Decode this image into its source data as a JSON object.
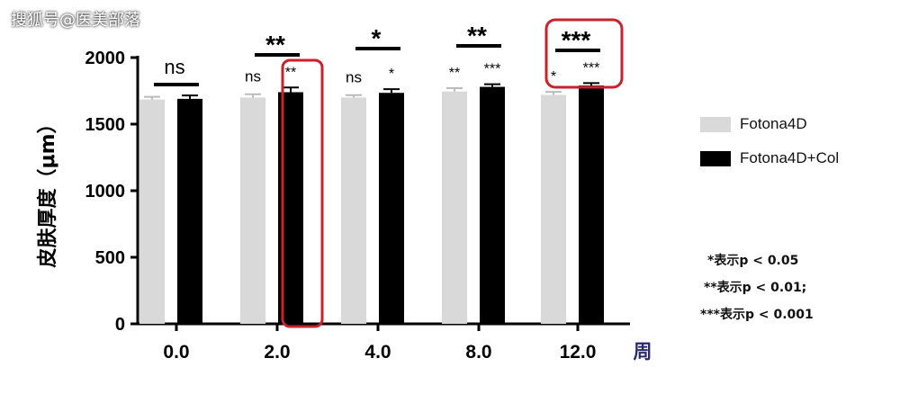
{
  "watermark": "搜狐号@医美部落",
  "colors": {
    "series1": "#d9d9d9",
    "series2": "#000000",
    "highlight": "#c8232b",
    "axis": "#000000"
  },
  "chart_data": {
    "type": "bar",
    "categories": [
      "0.0",
      "2.0",
      "4.0",
      "8.0",
      "12.0"
    ],
    "xunit": "周",
    "ylabel": "皮肤厚度（μm）",
    "ylim": [
      0,
      2000
    ],
    "yticks": [
      0,
      500,
      1000,
      1500,
      2000
    ],
    "series": [
      {
        "name": "Fotona4D",
        "values": [
          1685,
          1700,
          1700,
          1745,
          1720
        ],
        "errors": [
          20,
          25,
          18,
          25,
          22
        ],
        "sig": [
          "",
          "ns",
          "ns",
          "**",
          "*"
        ]
      },
      {
        "name": "Fotona4D+Col",
        "values": [
          1690,
          1740,
          1735,
          1780,
          1790
        ],
        "errors": [
          25,
          35,
          28,
          20,
          18
        ],
        "sig": [
          "",
          "**",
          "*",
          "***",
          "***"
        ]
      }
    ],
    "comparisons": [
      "ns",
      "**",
      "*",
      "**",
      "***"
    ],
    "highlighted": [
      "2.0-series2",
      "12.0-annotation"
    ]
  },
  "notes": [
    "*表示p < 0.05",
    "**表示p < 0.01;",
    "***表示p < 0.001"
  ]
}
